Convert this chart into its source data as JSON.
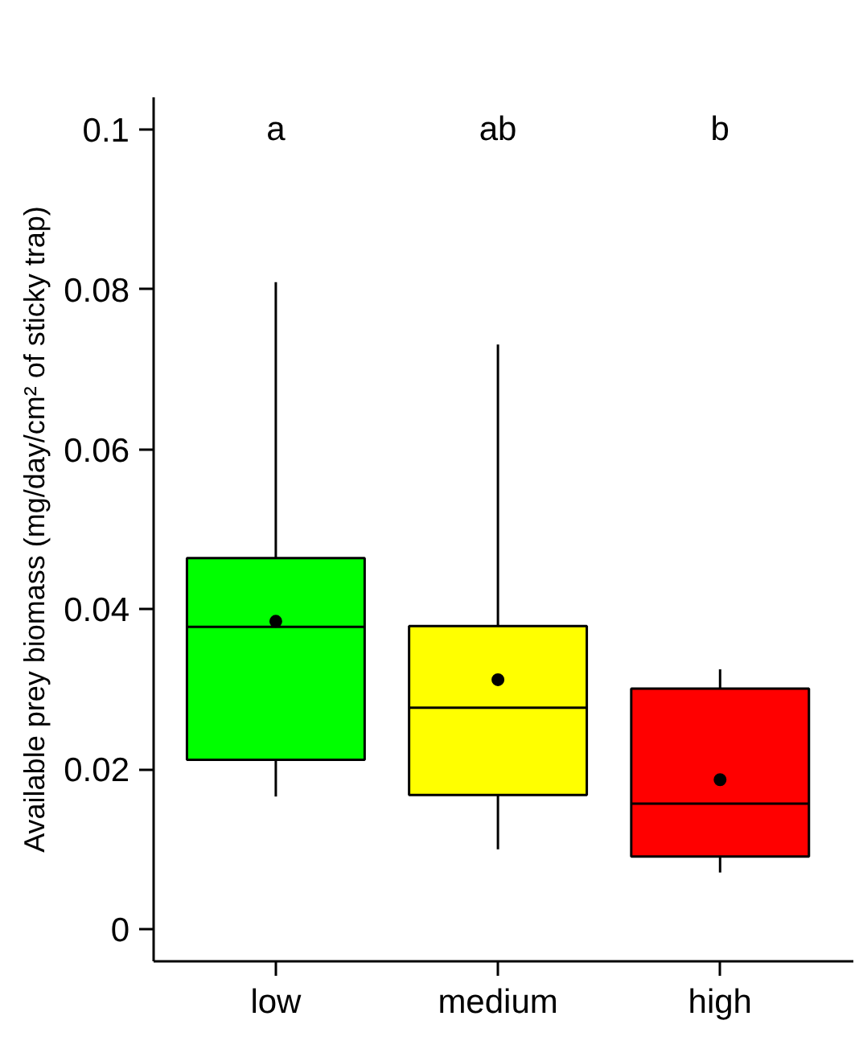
{
  "chart_data": {
    "type": "box",
    "ylabel": "Available prey biomass (mg/day/cm² of sticky trap)",
    "categories": [
      "low",
      "medium",
      "high"
    ],
    "colors": [
      "#00ff00",
      "#ffff00",
      "#ff0000"
    ],
    "boxes": [
      {
        "low": 0.0166,
        "q1": 0.0212,
        "median": 0.0378,
        "q3": 0.0464,
        "high": 0.0809,
        "mean": 0.0385
      },
      {
        "low": 0.01,
        "q1": 0.0168,
        "median": 0.0277,
        "q3": 0.0379,
        "high": 0.0731,
        "mean": 0.0312
      },
      {
        "low": 0.0071,
        "q1": 0.0091,
        "median": 0.0157,
        "q3": 0.0301,
        "high": 0.0325,
        "mean": 0.0187
      }
    ],
    "ylim": [
      -0.004,
      0.104
    ],
    "yticks": [
      0,
      0.02,
      0.04,
      0.06,
      0.08,
      0.1
    ],
    "annotations": [
      "a",
      "ab",
      "b"
    ],
    "grid": false
  }
}
